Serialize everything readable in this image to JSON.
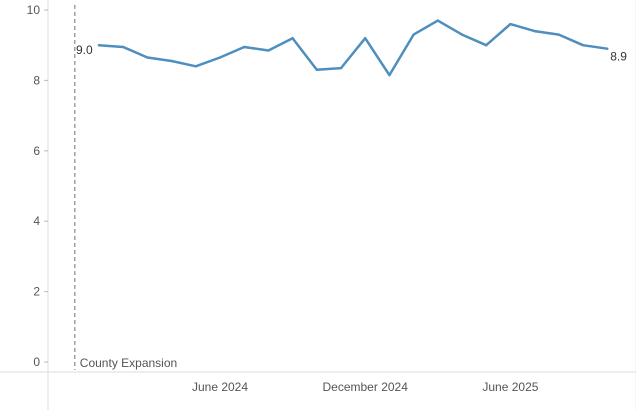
{
  "chart_data": {
    "type": "line",
    "title": "",
    "xlabel": "",
    "ylabel": "",
    "ylim": [
      0,
      10
    ],
    "y_ticks": [
      0,
      2,
      4,
      6,
      8,
      10
    ],
    "y_tick_labels": [
      "0",
      "2",
      "4",
      "6",
      "8",
      "10"
    ],
    "x_tick_labels": [
      {
        "label": "June 2024",
        "date": "2024-06"
      },
      {
        "label": "December 2024",
        "date": "2024-12"
      },
      {
        "label": "June 2025",
        "date": "2025-06"
      }
    ],
    "grid": false,
    "legend": "none",
    "series": [
      {
        "color": "#4e8fbf",
        "points": [
          {
            "x": "2024-01",
            "y": 9.0
          },
          {
            "x": "2024-02",
            "y": 8.95
          },
          {
            "x": "2024-03",
            "y": 8.65
          },
          {
            "x": "2024-04",
            "y": 8.55
          },
          {
            "x": "2024-05",
            "y": 8.4
          },
          {
            "x": "2024-06",
            "y": 8.65
          },
          {
            "x": "2024-07",
            "y": 8.95
          },
          {
            "x": "2024-08",
            "y": 8.85
          },
          {
            "x": "2024-09",
            "y": 9.2
          },
          {
            "x": "2024-10",
            "y": 8.3
          },
          {
            "x": "2024-11",
            "y": 8.35
          },
          {
            "x": "2024-12",
            "y": 9.2
          },
          {
            "x": "2025-01",
            "y": 8.15
          },
          {
            "x": "2025-02",
            "y": 9.3
          },
          {
            "x": "2025-03",
            "y": 9.7
          },
          {
            "x": "2025-04",
            "y": 9.3
          },
          {
            "x": "2025-05",
            "y": 9.0
          },
          {
            "x": "2025-06",
            "y": 9.6
          },
          {
            "x": "2025-07",
            "y": 9.4
          },
          {
            "x": "2025-08",
            "y": 9.3
          },
          {
            "x": "2025-09",
            "y": 9.0
          },
          {
            "x": "2025-10",
            "y": 8.9
          }
        ]
      }
    ],
    "start_label": "9.0",
    "end_label": "8.9",
    "reference_line": {
      "x": "2023-12",
      "label": "County Expansion"
    }
  }
}
